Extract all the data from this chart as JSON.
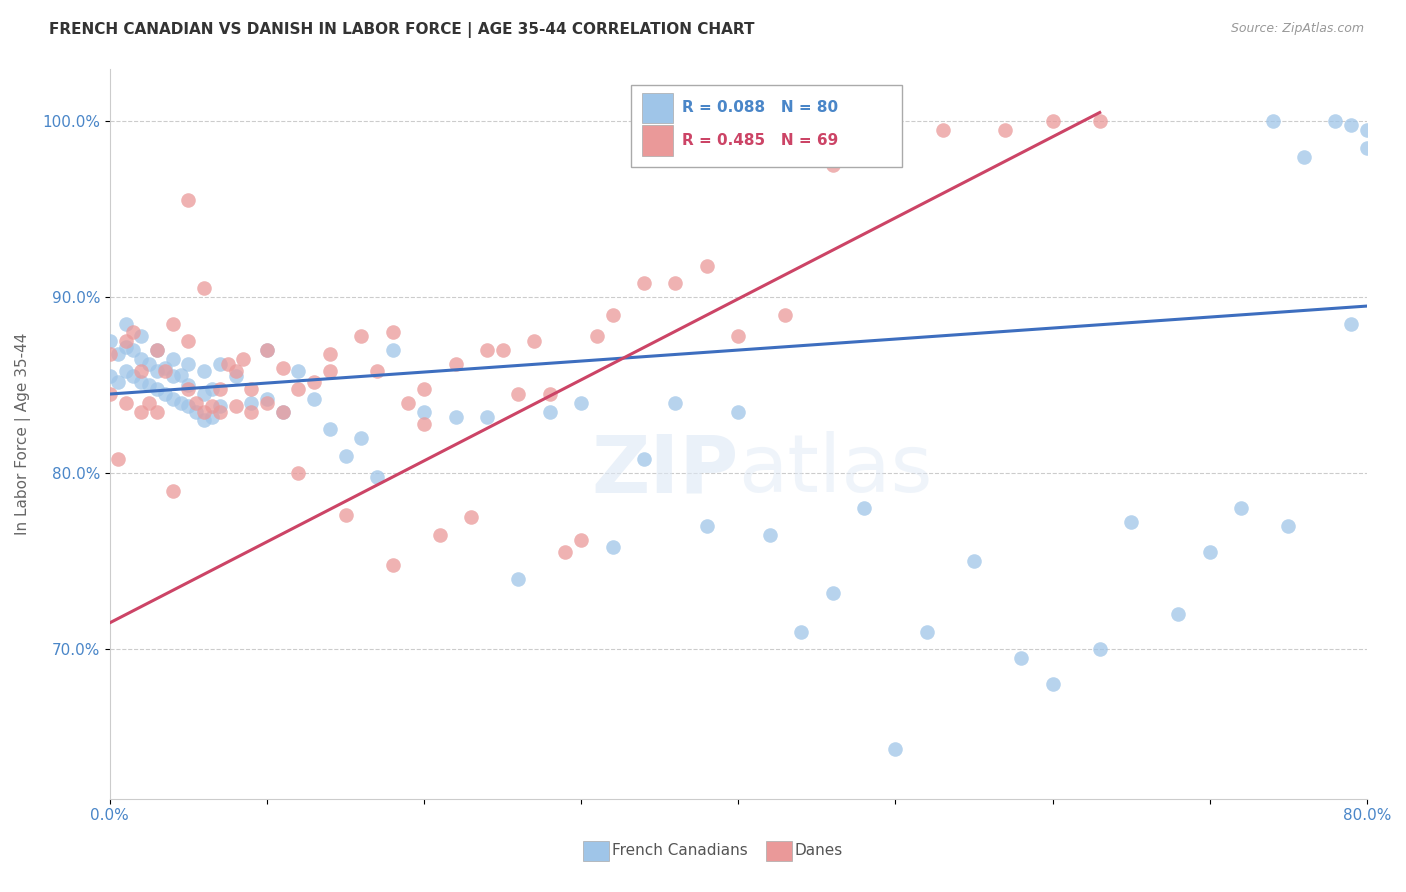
{
  "title": "FRENCH CANADIAN VS DANISH IN LABOR FORCE | AGE 35-44 CORRELATION CHART",
  "source": "Source: ZipAtlas.com",
  "ylabel": "In Labor Force | Age 35-44",
  "xlim": [
    0.0,
    0.8
  ],
  "ylim": [
    0.615,
    1.03
  ],
  "xticks": [
    0.0,
    0.1,
    0.2,
    0.3,
    0.4,
    0.5,
    0.6,
    0.7,
    0.8
  ],
  "xticklabels": [
    "0.0%",
    "",
    "",
    "",
    "",
    "",
    "",
    "",
    "80.0%"
  ],
  "yticks": [
    0.7,
    0.8,
    0.9,
    1.0
  ],
  "yticklabels": [
    "70.0%",
    "80.0%",
    "90.0%",
    "100.0%"
  ],
  "blue_r": 0.088,
  "blue_n": 80,
  "pink_r": 0.485,
  "pink_n": 69,
  "blue_color": "#9fc5e8",
  "pink_color": "#ea9999",
  "blue_line_color": "#3d6ebf",
  "pink_line_color": "#cc4466",
  "blue_points_x": [
    0.0,
    0.0,
    0.005,
    0.005,
    0.01,
    0.01,
    0.01,
    0.015,
    0.015,
    0.02,
    0.02,
    0.02,
    0.025,
    0.025,
    0.03,
    0.03,
    0.03,
    0.035,
    0.035,
    0.04,
    0.04,
    0.04,
    0.045,
    0.045,
    0.05,
    0.05,
    0.05,
    0.055,
    0.06,
    0.06,
    0.06,
    0.065,
    0.065,
    0.07,
    0.07,
    0.08,
    0.09,
    0.1,
    0.1,
    0.11,
    0.12,
    0.13,
    0.14,
    0.15,
    0.16,
    0.17,
    0.18,
    0.2,
    0.22,
    0.24,
    0.26,
    0.28,
    0.3,
    0.32,
    0.34,
    0.36,
    0.38,
    0.4,
    0.42,
    0.44,
    0.46,
    0.48,
    0.5,
    0.52,
    0.55,
    0.58,
    0.6,
    0.63,
    0.65,
    0.68,
    0.7,
    0.72,
    0.74,
    0.75,
    0.76,
    0.78,
    0.79,
    0.79,
    0.8,
    0.8
  ],
  "blue_points_y": [
    0.855,
    0.875,
    0.852,
    0.868,
    0.858,
    0.872,
    0.885,
    0.855,
    0.87,
    0.852,
    0.865,
    0.878,
    0.85,
    0.862,
    0.848,
    0.858,
    0.87,
    0.845,
    0.86,
    0.842,
    0.855,
    0.865,
    0.84,
    0.856,
    0.838,
    0.85,
    0.862,
    0.835,
    0.83,
    0.845,
    0.858,
    0.832,
    0.848,
    0.838,
    0.862,
    0.855,
    0.84,
    0.842,
    0.87,
    0.835,
    0.858,
    0.842,
    0.825,
    0.81,
    0.82,
    0.798,
    0.87,
    0.835,
    0.832,
    0.832,
    0.74,
    0.835,
    0.84,
    0.758,
    0.808,
    0.84,
    0.77,
    0.835,
    0.765,
    0.71,
    0.732,
    0.78,
    0.643,
    0.71,
    0.75,
    0.695,
    0.68,
    0.7,
    0.772,
    0.72,
    0.755,
    0.78,
    1.0,
    0.77,
    0.98,
    1.0,
    0.885,
    0.998,
    0.985,
    0.995
  ],
  "pink_points_x": [
    0.0,
    0.0,
    0.005,
    0.01,
    0.01,
    0.015,
    0.02,
    0.02,
    0.025,
    0.03,
    0.03,
    0.035,
    0.04,
    0.04,
    0.05,
    0.05,
    0.05,
    0.055,
    0.06,
    0.06,
    0.065,
    0.07,
    0.07,
    0.075,
    0.08,
    0.08,
    0.085,
    0.09,
    0.09,
    0.1,
    0.1,
    0.11,
    0.11,
    0.12,
    0.12,
    0.13,
    0.14,
    0.14,
    0.15,
    0.16,
    0.17,
    0.18,
    0.18,
    0.19,
    0.2,
    0.2,
    0.21,
    0.22,
    0.23,
    0.24,
    0.25,
    0.26,
    0.27,
    0.28,
    0.29,
    0.3,
    0.31,
    0.32,
    0.34,
    0.36,
    0.38,
    0.4,
    0.43,
    0.46,
    0.5,
    0.53,
    0.57,
    0.6,
    0.63
  ],
  "pink_points_y": [
    0.845,
    0.868,
    0.808,
    0.84,
    0.875,
    0.88,
    0.835,
    0.858,
    0.84,
    0.835,
    0.87,
    0.858,
    0.79,
    0.885,
    0.848,
    0.875,
    0.955,
    0.84,
    0.835,
    0.905,
    0.838,
    0.835,
    0.848,
    0.862,
    0.838,
    0.858,
    0.865,
    0.835,
    0.848,
    0.84,
    0.87,
    0.835,
    0.86,
    0.8,
    0.848,
    0.852,
    0.858,
    0.868,
    0.776,
    0.878,
    0.858,
    0.748,
    0.88,
    0.84,
    0.828,
    0.848,
    0.765,
    0.862,
    0.775,
    0.87,
    0.87,
    0.845,
    0.875,
    0.845,
    0.755,
    0.762,
    0.878,
    0.89,
    0.908,
    0.908,
    0.918,
    0.878,
    0.89,
    0.975,
    1.0,
    0.995,
    0.995,
    1.0,
    1.0
  ]
}
